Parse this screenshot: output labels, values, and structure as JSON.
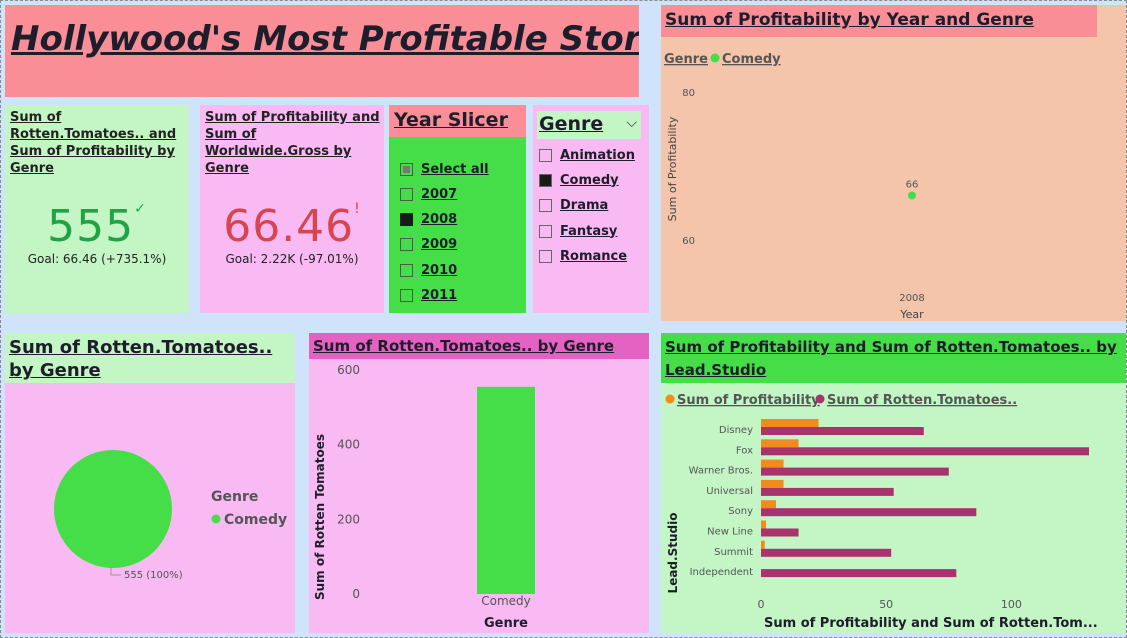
{
  "title": "Hollywood's Most Profitable Stories",
  "kpi_rt": {
    "title": "Sum of Rotten.Tomatoes.. and Sum of Profitability by Genre",
    "value": "555",
    "indicator": "✓",
    "goal": "Goal: 66.46 (+735.1%)",
    "value_color": "#21a345"
  },
  "kpi_profit": {
    "title": "Sum of Profitability and Sum of Worldwide.Gross by Genre",
    "value": "66.46",
    "indicator": "!",
    "goal": "Goal: 2.22K (-97.01%)",
    "value_color": "#d64550"
  },
  "year_slicer": {
    "title": "Year Slicer",
    "items": [
      {
        "label": "Select all",
        "state": "partial"
      },
      {
        "label": "2007",
        "state": "unchecked"
      },
      {
        "label": "2008",
        "state": "checked"
      },
      {
        "label": "2009",
        "state": "unchecked"
      },
      {
        "label": "2010",
        "state": "unchecked"
      },
      {
        "label": "2011",
        "state": "unchecked"
      }
    ]
  },
  "genre_slicer": {
    "title": "Genre",
    "chevron": "⌵",
    "items": [
      {
        "label": "Animation",
        "state": "unchecked"
      },
      {
        "label": "Comedy",
        "state": "checked"
      },
      {
        "label": "Drama",
        "state": "unchecked"
      },
      {
        "label": "Fantasy",
        "state": "unchecked"
      },
      {
        "label": "Romance",
        "state": "unchecked"
      }
    ]
  },
  "colors": {
    "comedy": "#45de48",
    "profitability": "#f28a1c",
    "rotten_tomatoes": "#a8336f"
  },
  "chart_data": [
    {
      "type": "scatter",
      "title": "Sum of Profitability by Year and Genre",
      "legend_title": "Genre",
      "legend": [
        "Comedy"
      ],
      "xlabel": "Year",
      "ylabel": "Sum of Profitability",
      "x_ticks": [
        "2008"
      ],
      "y_ticks": [
        60,
        80
      ],
      "ylim": [
        55,
        82
      ],
      "series": [
        {
          "name": "Comedy",
          "points": [
            {
              "x": "2008",
              "y": 66,
              "label": "66"
            }
          ]
        }
      ]
    },
    {
      "type": "pie",
      "title": "Sum of Rotten.Tomatoes.. by Genre",
      "legend_title": "Genre",
      "legend": [
        "Comedy"
      ],
      "slices": [
        {
          "label": "Comedy",
          "value": 555,
          "data_label": "555 (100%)"
        }
      ]
    },
    {
      "type": "bar",
      "title": "Sum of Rotten.Tomatoes.. by Genre",
      "xlabel": "Genre",
      "ylabel": "Sum of Rotten Tomatoes",
      "categories": [
        "Comedy"
      ],
      "values": [
        555
      ],
      "y_ticks": [
        0,
        200,
        400,
        600
      ],
      "ylim": [
        0,
        600
      ]
    },
    {
      "type": "bar",
      "orientation": "horizontal",
      "title": "Sum of Profitability and Sum of Rotten.Tomatoes.. by Lead.Studio",
      "xlabel": "Sum of Profitability and Sum of Rotten.Tom...",
      "ylabel": "Lead.Studio",
      "categories": [
        "Disney",
        "Fox",
        "Warner Bros.",
        "Universal",
        "Sony",
        "New Line",
        "Summit",
        "Independent"
      ],
      "x_ticks": [
        0,
        50,
        100
      ],
      "xlim": [
        0,
        131
      ],
      "series": [
        {
          "name": "Sum of Profitability",
          "values": [
            23,
            15,
            9,
            9,
            6,
            2,
            1.5,
            0
          ]
        },
        {
          "name": "Sum of Rotten.Tomatoes..",
          "values": [
            65,
            131,
            75,
            53,
            86,
            15,
            52,
            78
          ]
        }
      ]
    }
  ]
}
